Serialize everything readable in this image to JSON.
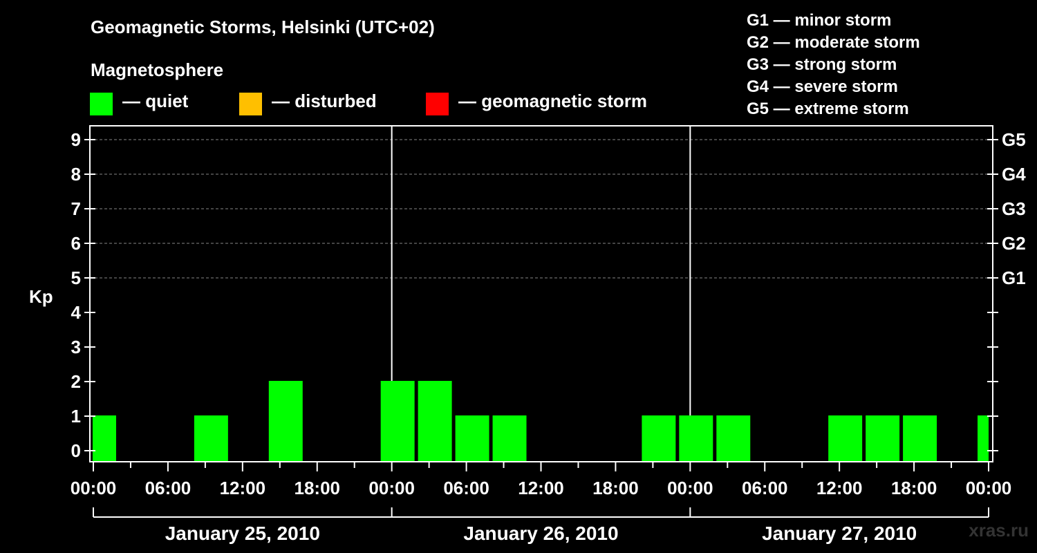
{
  "title": "Geomagnetic Storms, Helsinki (UTC+02)",
  "magnetosphere": {
    "title": "Magnetosphere",
    "legend": [
      {
        "color": "#00ff00",
        "label": "— quiet"
      },
      {
        "color": "#ffbf00",
        "label": "— disturbed"
      },
      {
        "color": "#ff0000",
        "label": "— geomagnetic storm"
      }
    ]
  },
  "storm_levels": [
    "G1 — minor storm",
    "G2 — moderate storm",
    "G3 — strong storm",
    "G4 — severe storm",
    "G5 — extreme storm"
  ],
  "watermark": "xras.ru",
  "chart_data": {
    "type": "bar",
    "title": "Geomagnetic Storms, Helsinki (UTC+02)",
    "ylabel": "Kp",
    "ylim": [
      0,
      9
    ],
    "y_ticks": [
      0,
      1,
      2,
      3,
      4,
      5,
      6,
      7,
      8,
      9
    ],
    "right_axis_labels": [
      {
        "kp": 5,
        "label": "G1"
      },
      {
        "kp": 6,
        "label": "G2"
      },
      {
        "kp": 7,
        "label": "G3"
      },
      {
        "kp": 8,
        "label": "G4"
      },
      {
        "kp": 9,
        "label": "G5"
      }
    ],
    "x_ticks": [
      "00:00",
      "06:00",
      "12:00",
      "18:00",
      "00:00",
      "06:00",
      "12:00",
      "18:00",
      "00:00",
      "06:00",
      "12:00",
      "18:00",
      "00:00"
    ],
    "days": [
      "January 25, 2010",
      "January 26, 2010",
      "January 27, 2010"
    ],
    "bar_color": "#00ff00",
    "series": [
      {
        "values": [
          {
            "day": "January 25, 2010",
            "start": "02:00",
            "kp": 1
          },
          {
            "day": "January 25, 2010",
            "start": "05:00",
            "kp": 0
          },
          {
            "day": "January 25, 2010",
            "start": "08:00",
            "kp": 0
          },
          {
            "day": "January 25, 2010",
            "start": "11:00",
            "kp": 1
          },
          {
            "day": "January 25, 2010",
            "start": "14:00",
            "kp": 0
          },
          {
            "day": "January 25, 2010",
            "start": "17:00",
            "kp": 2
          },
          {
            "day": "January 25, 2010",
            "start": "20:00",
            "kp": 0
          },
          {
            "day": "January 25, 2010",
            "start": "23:00",
            "kp": 0
          },
          {
            "day": "January 26, 2010",
            "start": "02:00",
            "kp": 2
          },
          {
            "day": "January 26, 2010",
            "start": "05:00",
            "kp": 2
          },
          {
            "day": "January 26, 2010",
            "start": "08:00",
            "kp": 1
          },
          {
            "day": "January 26, 2010",
            "start": "11:00",
            "kp": 1
          },
          {
            "day": "January 26, 2010",
            "start": "14:00",
            "kp": 0
          },
          {
            "day": "January 26, 2010",
            "start": "17:00",
            "kp": 0
          },
          {
            "day": "January 26, 2010",
            "start": "20:00",
            "kp": 0
          },
          {
            "day": "January 26, 2010",
            "start": "23:00",
            "kp": 1
          },
          {
            "day": "January 27, 2010",
            "start": "02:00",
            "kp": 1
          },
          {
            "day": "January 27, 2010",
            "start": "05:00",
            "kp": 1
          },
          {
            "day": "January 27, 2010",
            "start": "08:00",
            "kp": 0
          },
          {
            "day": "January 27, 2010",
            "start": "11:00",
            "kp": 0
          },
          {
            "day": "January 27, 2010",
            "start": "14:00",
            "kp": 1
          },
          {
            "day": "January 27, 2010",
            "start": "17:00",
            "kp": 1
          },
          {
            "day": "January 27, 2010",
            "start": "20:00",
            "kp": 1
          },
          {
            "day": "January 27, 2010",
            "start": "23:00",
            "kp": 0
          },
          {
            "day": "January 28, 2010",
            "start": "02:00",
            "kp": 1
          }
        ]
      }
    ],
    "grid": {
      "horizontal_dashed_from_kp": 5
    },
    "legend_position": "top-left"
  }
}
